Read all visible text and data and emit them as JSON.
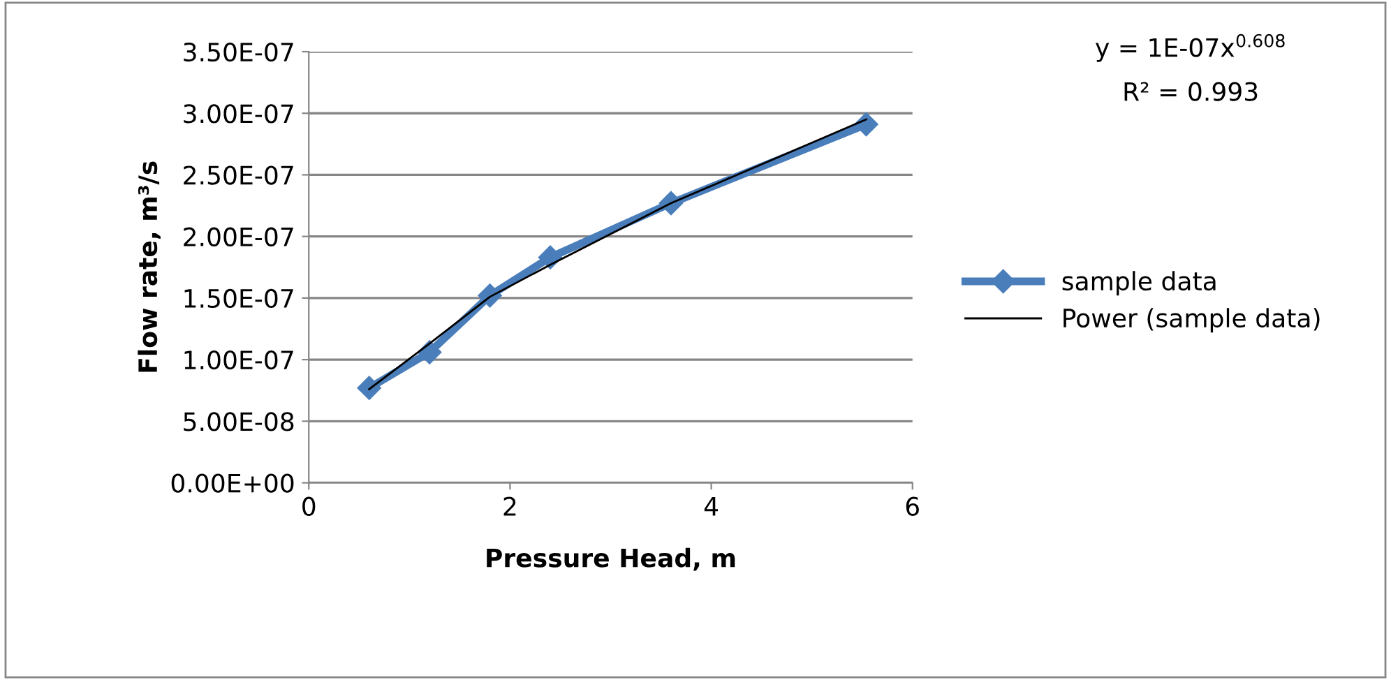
{
  "chart_data": {
    "type": "line",
    "xlabel": "Pressure Head, m",
    "ylabel": "Flow rate, m³/s",
    "series": [
      {
        "name": "sample data",
        "color": "#4a7ebb",
        "marker": "diamond",
        "x": [
          0.6,
          1.2,
          1.8,
          2.4,
          3.6,
          5.54
        ],
        "values": [
          7.7e-08,
          1.06e-07,
          1.52e-07,
          1.83e-07,
          2.27e-07,
          2.91e-07
        ]
      },
      {
        "name": "Power (sample data)",
        "color": "#000000",
        "marker": "none",
        "x": [
          0.6,
          1.2,
          1.8,
          2.4,
          3.6,
          4.2,
          5.54
        ],
        "values": [
          7.6e-08,
          1.13e-07,
          1.51e-07,
          1.77e-07,
          2.27e-07,
          2.48e-07,
          2.95e-07
        ]
      }
    ],
    "xlim": [
      0,
      6
    ],
    "xticks": [
      0,
      2,
      4,
      6
    ],
    "ylim": [
      0,
      3.5e-07
    ],
    "yticks": [
      {
        "value": 0,
        "label": "0.00E+00"
      },
      {
        "value": 5e-08,
        "label": "5.00E-08"
      },
      {
        "value": 1e-07,
        "label": "1.00E-07"
      },
      {
        "value": 1.5e-07,
        "label": "1.50E-07"
      },
      {
        "value": 2e-07,
        "label": "2.00E-07"
      },
      {
        "value": 2.5e-07,
        "label": "2.50E-07"
      },
      {
        "value": 3e-07,
        "label": "3.00E-07"
      },
      {
        "value": 3.5e-07,
        "label": "3.50E-07"
      }
    ],
    "grid": "y",
    "legend": "right",
    "annotations": [
      "y = 1E-07x$^{0.608}$",
      "R² = 0.993"
    ]
  }
}
